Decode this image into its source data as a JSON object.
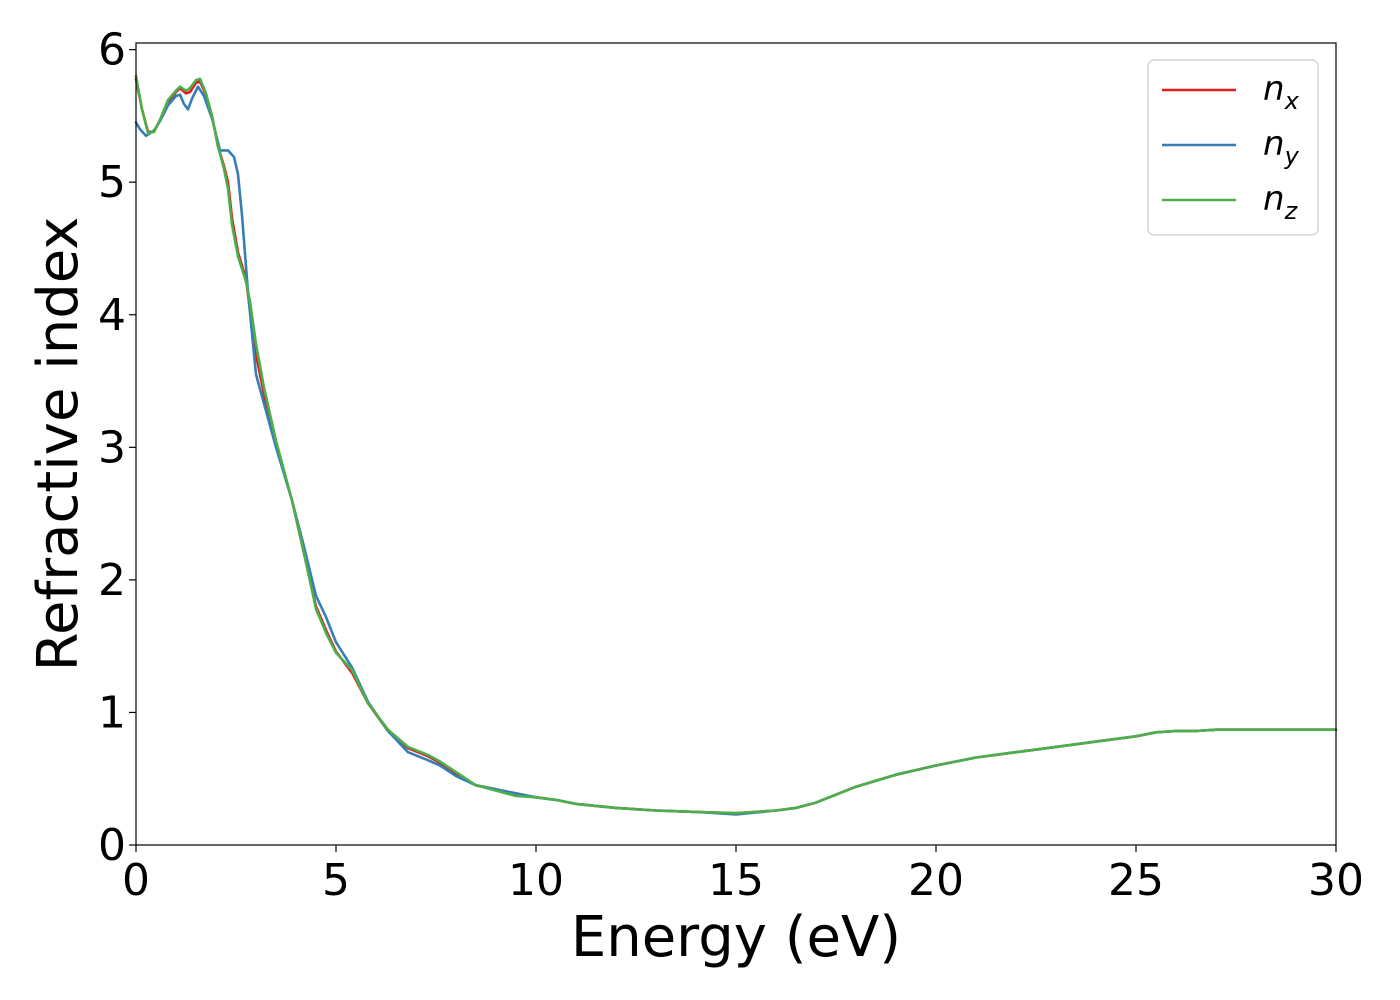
{
  "chart_data": {
    "type": "line",
    "title": "",
    "xlabel": "Energy (eV)",
    "ylabel": "Refractive index",
    "xlim": [
      0,
      30
    ],
    "ylim": [
      0,
      6.05
    ],
    "xticks": [
      0,
      5,
      10,
      15,
      20,
      25,
      30
    ],
    "yticks": [
      0,
      1,
      2,
      3,
      4,
      5,
      6
    ],
    "grid": false,
    "legend_position": "top-right",
    "series": [
      {
        "name": "n",
        "subscript": "x",
        "color": "#e41a1c",
        "points": [
          [
            0,
            5.78
          ],
          [
            0.15,
            5.55
          ],
          [
            0.3,
            5.38
          ],
          [
            0.45,
            5.38
          ],
          [
            0.6,
            5.47
          ],
          [
            0.8,
            5.6
          ],
          [
            1.0,
            5.68
          ],
          [
            1.1,
            5.71
          ],
          [
            1.25,
            5.67
          ],
          [
            1.35,
            5.68
          ],
          [
            1.5,
            5.75
          ],
          [
            1.6,
            5.76
          ],
          [
            1.75,
            5.66
          ],
          [
            1.9,
            5.5
          ],
          [
            2.05,
            5.27
          ],
          [
            2.2,
            5.12
          ],
          [
            2.3,
            5.0
          ],
          [
            2.4,
            4.73
          ],
          [
            2.55,
            4.47
          ],
          [
            2.75,
            4.27
          ],
          [
            2.85,
            4.04
          ],
          [
            3.0,
            3.7
          ],
          [
            3.2,
            3.4
          ],
          [
            3.5,
            3.02
          ],
          [
            3.9,
            2.6
          ],
          [
            4.2,
            2.2
          ],
          [
            4.5,
            1.8
          ],
          [
            4.75,
            1.62
          ],
          [
            5.0,
            1.46
          ],
          [
            5.4,
            1.3
          ],
          [
            5.8,
            1.07
          ],
          [
            6.3,
            0.86
          ],
          [
            6.8,
            0.73
          ],
          [
            7.3,
            0.67
          ],
          [
            7.6,
            0.62
          ],
          [
            8.0,
            0.53
          ],
          [
            8.5,
            0.45
          ],
          [
            9.0,
            0.42
          ],
          [
            9.5,
            0.38
          ],
          [
            10.0,
            0.36
          ],
          [
            10.5,
            0.34
          ],
          [
            11.0,
            0.31
          ],
          [
            12.0,
            0.28
          ],
          [
            13.0,
            0.26
          ],
          [
            14.0,
            0.25
          ],
          [
            15.0,
            0.24
          ],
          [
            16.0,
            0.26
          ],
          [
            16.5,
            0.28
          ],
          [
            17.0,
            0.32
          ],
          [
            18.0,
            0.44
          ],
          [
            19.0,
            0.53
          ],
          [
            20.0,
            0.6
          ],
          [
            21.0,
            0.66
          ],
          [
            22.0,
            0.7
          ],
          [
            23.0,
            0.74
          ],
          [
            24.0,
            0.78
          ],
          [
            25.0,
            0.82
          ],
          [
            25.5,
            0.85
          ],
          [
            26.0,
            0.86
          ],
          [
            26.5,
            0.86
          ],
          [
            27.0,
            0.87
          ],
          [
            28.0,
            0.87
          ],
          [
            29.0,
            0.87
          ],
          [
            30.0,
            0.87
          ]
        ]
      },
      {
        "name": "n",
        "subscript": "y",
        "color": "#377eb8",
        "points": [
          [
            0,
            5.45
          ],
          [
            0.1,
            5.4
          ],
          [
            0.25,
            5.35
          ],
          [
            0.45,
            5.39
          ],
          [
            0.6,
            5.46
          ],
          [
            0.8,
            5.58
          ],
          [
            1.0,
            5.65
          ],
          [
            1.1,
            5.66
          ],
          [
            1.2,
            5.59
          ],
          [
            1.3,
            5.55
          ],
          [
            1.4,
            5.63
          ],
          [
            1.55,
            5.72
          ],
          [
            1.7,
            5.65
          ],
          [
            1.9,
            5.48
          ],
          [
            2.1,
            5.24
          ],
          [
            2.3,
            5.24
          ],
          [
            2.45,
            5.19
          ],
          [
            2.55,
            5.06
          ],
          [
            2.65,
            4.75
          ],
          [
            2.8,
            4.17
          ],
          [
            3.0,
            3.55
          ],
          [
            3.2,
            3.33
          ],
          [
            3.5,
            3.0
          ],
          [
            3.9,
            2.6
          ],
          [
            4.2,
            2.25
          ],
          [
            4.5,
            1.88
          ],
          [
            4.75,
            1.72
          ],
          [
            5.0,
            1.53
          ],
          [
            5.4,
            1.34
          ],
          [
            5.8,
            1.08
          ],
          [
            6.3,
            0.86
          ],
          [
            6.8,
            0.7
          ],
          [
            7.3,
            0.64
          ],
          [
            7.6,
            0.6
          ],
          [
            8.0,
            0.52
          ],
          [
            8.5,
            0.45
          ],
          [
            9.0,
            0.42
          ],
          [
            9.5,
            0.39
          ],
          [
            10.0,
            0.36
          ],
          [
            10.5,
            0.34
          ],
          [
            11.0,
            0.31
          ],
          [
            12.0,
            0.28
          ],
          [
            13.0,
            0.26
          ],
          [
            14.0,
            0.25
          ],
          [
            15.0,
            0.23
          ],
          [
            16.0,
            0.26
          ],
          [
            16.5,
            0.28
          ],
          [
            17.0,
            0.32
          ],
          [
            18.0,
            0.44
          ],
          [
            19.0,
            0.53
          ],
          [
            20.0,
            0.6
          ],
          [
            21.0,
            0.66
          ],
          [
            22.0,
            0.7
          ],
          [
            23.0,
            0.74
          ],
          [
            24.0,
            0.78
          ],
          [
            25.0,
            0.82
          ],
          [
            25.5,
            0.85
          ],
          [
            26.0,
            0.86
          ],
          [
            26.5,
            0.86
          ],
          [
            27.0,
            0.87
          ],
          [
            28.0,
            0.87
          ],
          [
            29.0,
            0.87
          ],
          [
            30.0,
            0.87
          ]
        ]
      },
      {
        "name": "n",
        "subscript": "z",
        "color": "#4daf4a",
        "points": [
          [
            0,
            5.8
          ],
          [
            0.15,
            5.55
          ],
          [
            0.3,
            5.37
          ],
          [
            0.45,
            5.38
          ],
          [
            0.6,
            5.47
          ],
          [
            0.8,
            5.62
          ],
          [
            1.0,
            5.69
          ],
          [
            1.1,
            5.72
          ],
          [
            1.25,
            5.69
          ],
          [
            1.35,
            5.71
          ],
          [
            1.5,
            5.77
          ],
          [
            1.6,
            5.78
          ],
          [
            1.75,
            5.67
          ],
          [
            1.9,
            5.5
          ],
          [
            2.05,
            5.27
          ],
          [
            2.2,
            5.1
          ],
          [
            2.3,
            4.95
          ],
          [
            2.4,
            4.68
          ],
          [
            2.55,
            4.44
          ],
          [
            2.75,
            4.25
          ],
          [
            2.85,
            4.1
          ],
          [
            3.0,
            3.78
          ],
          [
            3.2,
            3.45
          ],
          [
            3.5,
            3.05
          ],
          [
            3.9,
            2.6
          ],
          [
            4.2,
            2.2
          ],
          [
            4.5,
            1.78
          ],
          [
            4.75,
            1.6
          ],
          [
            5.0,
            1.45
          ],
          [
            5.4,
            1.32
          ],
          [
            5.8,
            1.07
          ],
          [
            6.3,
            0.87
          ],
          [
            6.8,
            0.74
          ],
          [
            7.3,
            0.68
          ],
          [
            7.6,
            0.63
          ],
          [
            8.0,
            0.55
          ],
          [
            8.5,
            0.45
          ],
          [
            9.0,
            0.41
          ],
          [
            9.5,
            0.37
          ],
          [
            10.0,
            0.36
          ],
          [
            10.5,
            0.34
          ],
          [
            11.0,
            0.31
          ],
          [
            12.0,
            0.28
          ],
          [
            13.0,
            0.26
          ],
          [
            14.0,
            0.25
          ],
          [
            15.0,
            0.24
          ],
          [
            16.0,
            0.26
          ],
          [
            16.5,
            0.28
          ],
          [
            17.0,
            0.32
          ],
          [
            18.0,
            0.44
          ],
          [
            19.0,
            0.53
          ],
          [
            20.0,
            0.6
          ],
          [
            21.0,
            0.66
          ],
          [
            22.0,
            0.7
          ],
          [
            23.0,
            0.74
          ],
          [
            24.0,
            0.78
          ],
          [
            25.0,
            0.82
          ],
          [
            25.5,
            0.85
          ],
          [
            26.0,
            0.86
          ],
          [
            26.5,
            0.86
          ],
          [
            27.0,
            0.87
          ],
          [
            28.0,
            0.87
          ],
          [
            29.0,
            0.87
          ],
          [
            30.0,
            0.87
          ]
        ]
      }
    ]
  }
}
